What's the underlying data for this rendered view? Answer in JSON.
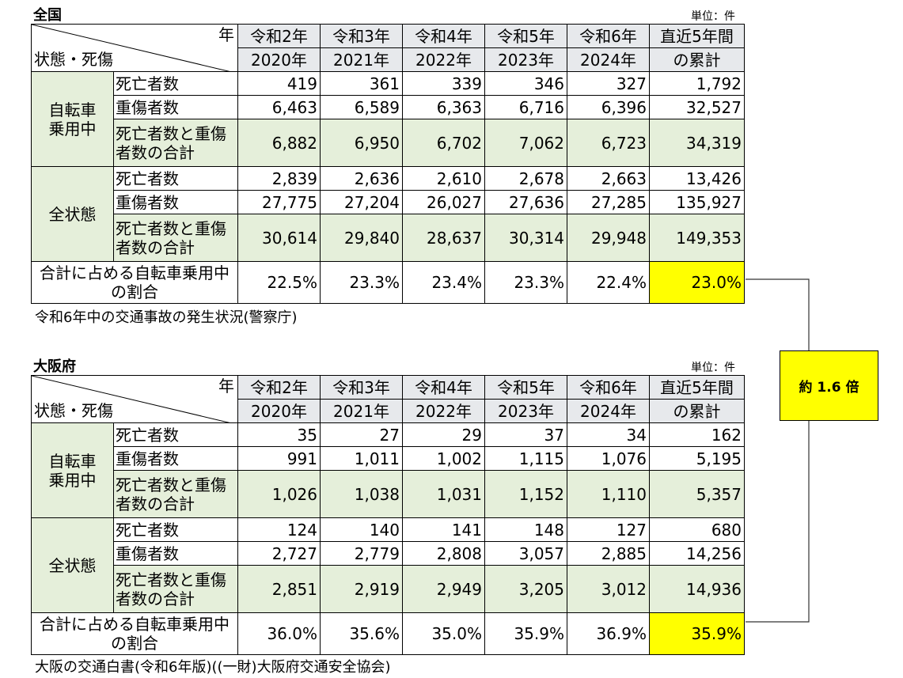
{
  "national": {
    "title": "全国",
    "unit": "単位：件",
    "header": {
      "year_label": "年",
      "status_label": "状態・死傷",
      "years": [
        "令和2年",
        "令和3年",
        "令和4年",
        "令和5年",
        "令和6年"
      ],
      "years_ad": [
        "2020年",
        "2021年",
        "2022年",
        "2023年",
        "2024年"
      ],
      "total_top": "直近5年間",
      "total_bottom": "の累計"
    },
    "groups": [
      {
        "name_lines": [
          "自転車",
          "乗用中"
        ],
        "rows": [
          {
            "label_lines": [
              "死亡者数"
            ],
            "values": [
              "419",
              "361",
              "339",
              "346",
              "327"
            ],
            "total": "1,792"
          },
          {
            "label_lines": [
              "重傷者数"
            ],
            "values": [
              "6,463",
              "6,589",
              "6,363",
              "6,716",
              "6,396"
            ],
            "total": "32,527"
          },
          {
            "label_lines": [
              "死亡者数と重傷",
              "者数の合計"
            ],
            "values": [
              "6,882",
              "6,950",
              "6,702",
              "7,062",
              "6,723"
            ],
            "total": "34,319"
          }
        ]
      },
      {
        "name_lines": [
          "全状態"
        ],
        "rows": [
          {
            "label_lines": [
              "死亡者数"
            ],
            "values": [
              "2,839",
              "2,636",
              "2,610",
              "2,678",
              "2,663"
            ],
            "total": "13,426"
          },
          {
            "label_lines": [
              "重傷者数"
            ],
            "values": [
              "27,775",
              "27,204",
              "26,027",
              "27,636",
              "27,285"
            ],
            "total": "135,927"
          },
          {
            "label_lines": [
              "死亡者数と重傷",
              "者数の合計"
            ],
            "values": [
              "30,614",
              "29,840",
              "28,637",
              "30,314",
              "29,948"
            ],
            "total": "149,353"
          }
        ]
      }
    ],
    "ratio": {
      "label_lines": [
        "合計に占める自転車乗用中",
        "の割合"
      ],
      "values": [
        "22.5%",
        "23.3%",
        "23.4%",
        "23.3%",
        "22.4%"
      ],
      "total": "23.0%"
    },
    "source": "令和6年中の交通事故の発生状況(警察庁)"
  },
  "osaka": {
    "title": "大阪府",
    "unit": "単位：件",
    "header": {
      "year_label": "年",
      "status_label": "状態・死傷",
      "years": [
        "令和2年",
        "令和3年",
        "令和4年",
        "令和5年",
        "令和6年"
      ],
      "years_ad": [
        "2020年",
        "2021年",
        "2022年",
        "2023年",
        "2024年"
      ],
      "total_top": "直近5年間",
      "total_bottom": "の累計"
    },
    "groups": [
      {
        "name_lines": [
          "自転車",
          "乗用中"
        ],
        "rows": [
          {
            "label_lines": [
              "死亡者数"
            ],
            "values": [
              "35",
              "27",
              "29",
              "37",
              "34"
            ],
            "total": "162"
          },
          {
            "label_lines": [
              "重傷者数"
            ],
            "values": [
              "991",
              "1,011",
              "1,002",
              "1,115",
              "1,076"
            ],
            "total": "5,195"
          },
          {
            "label_lines": [
              "死亡者数と重傷",
              "者数の合計"
            ],
            "values": [
              "1,026",
              "1,038",
              "1,031",
              "1,152",
              "1,110"
            ],
            "total": "5,357"
          }
        ]
      },
      {
        "name_lines": [
          "全状態"
        ],
        "rows": [
          {
            "label_lines": [
              "死亡者数"
            ],
            "values": [
              "124",
              "140",
              "141",
              "148",
              "127"
            ],
            "total": "680"
          },
          {
            "label_lines": [
              "重傷者数"
            ],
            "values": [
              "2,727",
              "2,779",
              "2,808",
              "3,057",
              "2,885"
            ],
            "total": "14,256"
          },
          {
            "label_lines": [
              "死亡者数と重傷",
              "者数の合計"
            ],
            "values": [
              "2,851",
              "2,919",
              "2,949",
              "3,205",
              "3,012"
            ],
            "total": "14,936"
          }
        ]
      }
    ],
    "ratio": {
      "label_lines": [
        "合計に占める自転車乗用中",
        "の割合"
      ],
      "values": [
        "36.0%",
        "35.6%",
        "35.0%",
        "35.9%",
        "36.9%"
      ],
      "total": "35.9%"
    },
    "source": "大阪の交通白書(令和6年版)((一財)大阪府交通安全協会)"
  },
  "comparison": {
    "text": "約 1.6 倍"
  },
  "colors": {
    "highlight": "#ffff00",
    "group_fill": "#e5efda",
    "header_fill": "#e7e9ec"
  }
}
